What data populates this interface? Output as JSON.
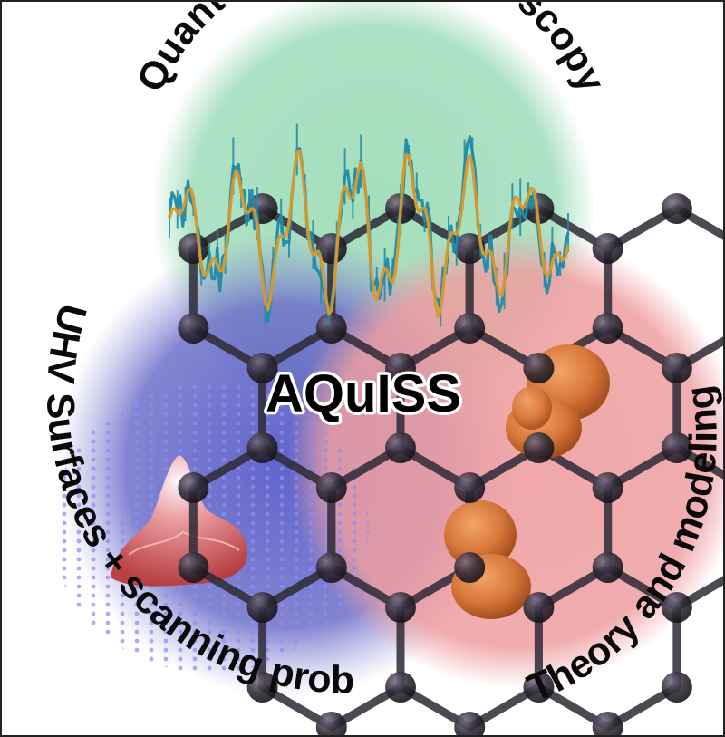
{
  "title": "AQuISS",
  "regions": {
    "top": "Quantum state spectroscopy",
    "left": "UHV Surfaces + scanning probe",
    "right": "Theory and modeling"
  },
  "colors": {
    "top_circle": "#9fdcb9",
    "left_circle": "#6d6fc9",
    "right_circle": "#ee9ea0",
    "signal_data": "#1f8aa8",
    "signal_fit": "#d69a2c",
    "lattice": "#2e2a36",
    "orbital": "#d8773a",
    "surface_peak": "#d85c5c"
  },
  "icons": [
    "noisy-spectrum-plot",
    "stm-surface-topography",
    "hexagonal-lattice-model",
    "orbital-density-lobes"
  ]
}
